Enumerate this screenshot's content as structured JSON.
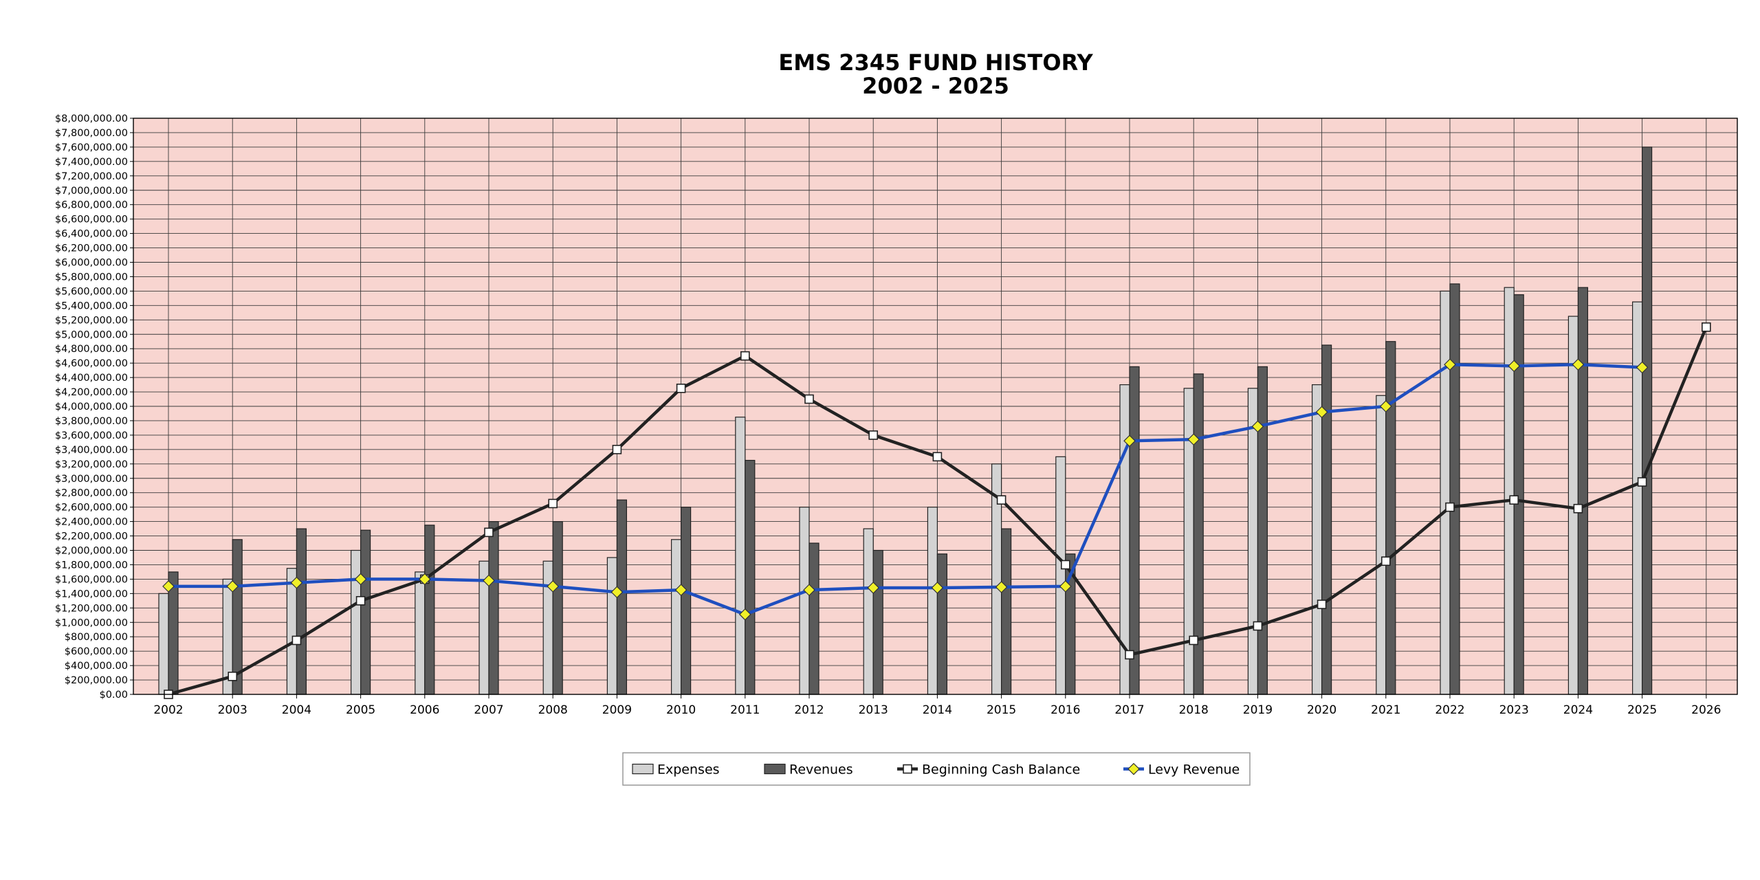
{
  "chart_data": {
    "type": "bar",
    "title_line1": "EMS 2345  FUND HISTORY",
    "title_line2": "2002 - 2025",
    "categories": [
      "2002",
      "2003",
      "2004",
      "2005",
      "2006",
      "2007",
      "2008",
      "2009",
      "2010",
      "2011",
      "2012",
      "2013",
      "2014",
      "2015",
      "2016",
      "2017",
      "2018",
      "2019",
      "2020",
      "2021",
      "2022",
      "2023",
      "2024",
      "2025",
      "2026"
    ],
    "ylim": [
      0,
      8000000
    ],
    "ytick_step": 200000,
    "grid": true,
    "legend_position": "bottom-center",
    "plot_background": "#f8d5d0",
    "series": [
      {
        "name": "Expenses",
        "kind": "bar",
        "color": "#d3d3d3",
        "values": [
          1400000,
          1600000,
          1750000,
          2000000,
          1700000,
          1850000,
          1850000,
          1900000,
          2150000,
          3850000,
          2600000,
          2300000,
          2600000,
          3200000,
          3300000,
          4300000,
          4250000,
          4250000,
          4300000,
          4150000,
          5600000,
          5650000,
          5250000,
          5450000,
          null
        ]
      },
      {
        "name": "Revenues",
        "kind": "bar",
        "color": "#5a5a5a",
        "values": [
          1700000,
          2150000,
          2300000,
          2280000,
          2350000,
          2400000,
          2400000,
          2700000,
          2600000,
          3250000,
          2100000,
          2000000,
          1950000,
          2300000,
          1950000,
          4550000,
          4450000,
          4550000,
          4850000,
          4900000,
          5700000,
          5550000,
          5650000,
          7600000,
          null
        ]
      },
      {
        "name": "Beginning Cash Balance",
        "kind": "line",
        "color": "#222222",
        "marker": "square",
        "values": [
          0,
          250000,
          750000,
          1300000,
          1600000,
          2250000,
          2650000,
          3400000,
          4250000,
          4700000,
          4100000,
          3600000,
          3300000,
          2700000,
          1800000,
          550000,
          750000,
          950000,
          1250000,
          1850000,
          2600000,
          2700000,
          2580000,
          2950000,
          5100000
        ]
      },
      {
        "name": "Levy Revenue",
        "kind": "line",
        "color": "#1f4fbf",
        "marker": "diamond",
        "marker_color": "#f0f028",
        "values": [
          1500000,
          1500000,
          1550000,
          1600000,
          1600000,
          1580000,
          1500000,
          1420000,
          1450000,
          1110000,
          1450000,
          1480000,
          1480000,
          1490000,
          1500000,
          3520000,
          3540000,
          3720000,
          3920000,
          4000000,
          4580000,
          4560000,
          4580000,
          4540000,
          null
        ]
      }
    ]
  }
}
